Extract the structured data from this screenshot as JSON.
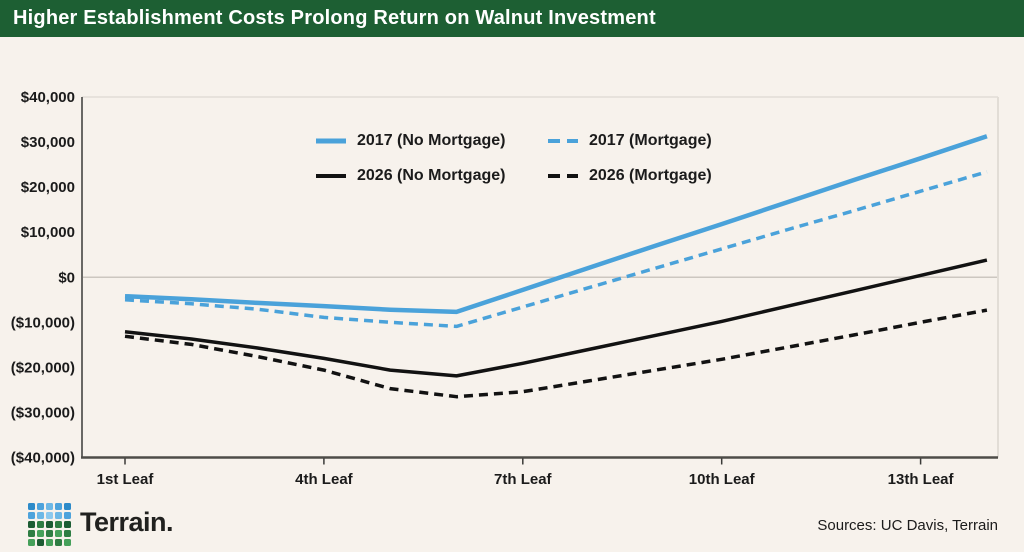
{
  "header": {
    "title": "Higher Establishment Costs Prolong Return on Walnut Investment"
  },
  "colors": {
    "header_green": "#1d5f33",
    "background_cream": "#f7f2ec",
    "accent_blue": "#4aa2da",
    "line_black": "#121212",
    "zero_gridline": "#ccc7c0",
    "light_spine": "#e2ddd6",
    "dark_spine": "#4e4c48"
  },
  "chart_data": {
    "type": "line",
    "title": "Higher Establishment Costs Prolong Return on Walnut Investment",
    "xlabel": "",
    "ylabel": "",
    "x_unit": "leaf year",
    "x": [
      1,
      2,
      3,
      4,
      5,
      6,
      7,
      8,
      9,
      10,
      11,
      12,
      13,
      14
    ],
    "series": [
      {
        "name": "2017 (No Mortgage)",
        "color": "#4aa2da",
        "dash": "solid",
        "values": [
          -4200,
          -4900,
          -5700,
          -6400,
          -7200,
          -7700,
          -2800,
          2100,
          7000,
          11800,
          16700,
          21600,
          26400,
          31300
        ]
      },
      {
        "name": "2017 (Mortgage)",
        "color": "#4aa2da",
        "dash": "dashed",
        "values": [
          -5000,
          -5900,
          -7100,
          -8900,
          -10000,
          -10900,
          -6600,
          -2300,
          2000,
          6300,
          10600,
          14800,
          19100,
          23400
        ]
      },
      {
        "name": "2026 (No Mortgage)",
        "color": "#121212",
        "dash": "solid",
        "values": [
          -12100,
          -13700,
          -15700,
          -18000,
          -20600,
          -21900,
          -19100,
          -16000,
          -12900,
          -9800,
          -6400,
          -3000,
          400,
          3800
        ]
      },
      {
        "name": "2026 (Mortgage)",
        "color": "#121212",
        "dash": "dashed",
        "values": [
          -13100,
          -14900,
          -17600,
          -20600,
          -24700,
          -26500,
          -25400,
          -23000,
          -20600,
          -18200,
          -15500,
          -12800,
          -10000,
          -7300
        ]
      }
    ],
    "y_ticks": [
      {
        "label": "$40,000",
        "value": 40000
      },
      {
        "label": "$30,000",
        "value": 30000
      },
      {
        "label": "$20,000",
        "value": 20000
      },
      {
        "label": "$10,000",
        "value": 10000
      },
      {
        "label": "$0",
        "value": 0
      },
      {
        "label": "($10,000)",
        "value": -10000
      },
      {
        "label": "($20,000)",
        "value": -20000
      },
      {
        "label": "($30,000)",
        "value": -30000
      },
      {
        "label": "($40,000)",
        "value": -40000
      }
    ],
    "x_ticks": [
      {
        "label": "1st Leaf",
        "leaf": 1
      },
      {
        "label": "4th Leaf",
        "leaf": 4
      },
      {
        "label": "7th Leaf",
        "leaf": 7
      },
      {
        "label": "10th Leaf",
        "leaf": 10
      },
      {
        "label": "13th Leaf",
        "leaf": 13
      }
    ],
    "ylim": [
      -40000,
      40000
    ],
    "grid": "zero-line-only",
    "legend_position": "top-center-inside"
  },
  "footer": {
    "brand": "Terrain.",
    "sources": "Sources: UC Davis, Terrain",
    "logo_grid": [
      [
        "#2d8bc9",
        "#4da3dc",
        "#6db8e6",
        "#4da3dc",
        "#2d8bc9"
      ],
      [
        "#4da3dc",
        "#6db8e6",
        "#8cc9ee",
        "#6db8e6",
        "#4da3dc"
      ],
      [
        "#1c5c33",
        "#2e7d43",
        "#1c5c33",
        "#2e7d43",
        "#1c5c33"
      ],
      [
        "#2e7d43",
        "#45a05a",
        "#2e7d43",
        "#45a05a",
        "#2e7d43"
      ],
      [
        "#45a05a",
        "#1c5c33",
        "#45a05a",
        "#2e7d43",
        "#45a05a"
      ]
    ]
  }
}
